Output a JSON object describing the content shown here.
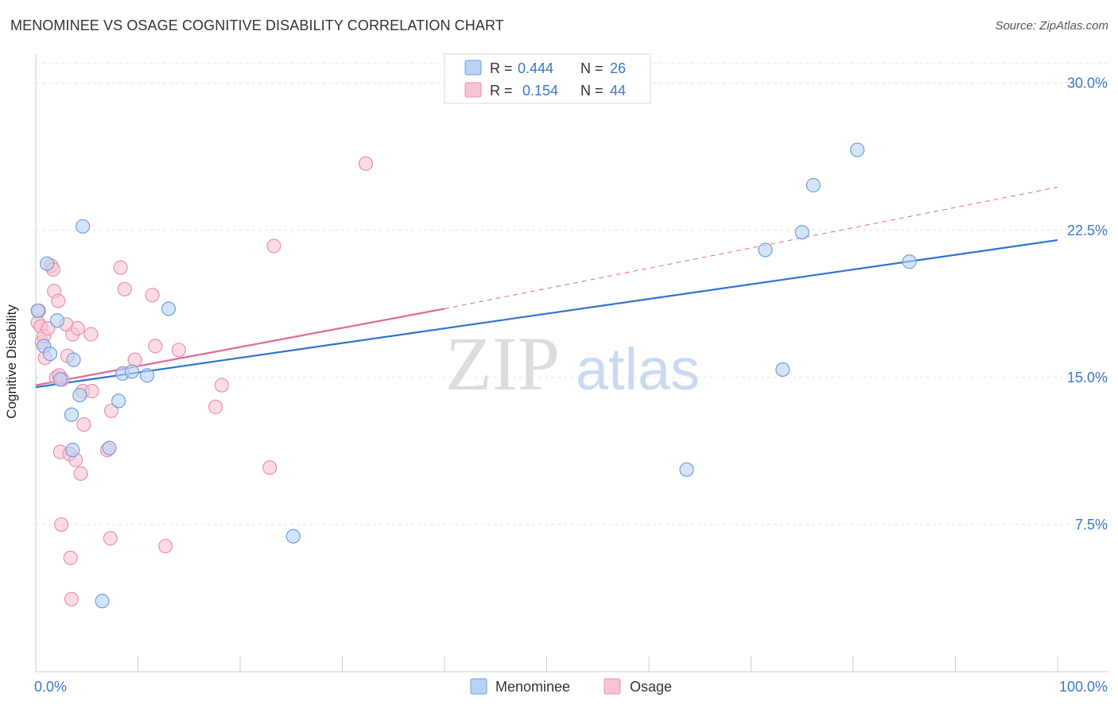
{
  "header": {
    "title": "MENOMINEE VS OSAGE COGNITIVE DISABILITY CORRELATION CHART",
    "source": "Source: ZipAtlas.com"
  },
  "watermark": {
    "zip": "ZIP",
    "atlas": "atlas"
  },
  "colors": {
    "menominee_fill": "#b9d3f4",
    "menominee_stroke": "#6e9fdc",
    "menominee_line": "#2f72d0",
    "osage_fill": "#f8c3d3",
    "osage_stroke": "#e991ad",
    "osage_line": "#e06a93",
    "accent_text": "#3a78c9"
  },
  "stats": [
    {
      "r_label": "R =",
      "r_value": "0.444",
      "n_label": "N =",
      "n_value": "26"
    },
    {
      "r_label": "R =",
      "r_value": "0.154",
      "n_label": "N =",
      "n_value": "44"
    }
  ],
  "chart_data": {
    "type": "scatter",
    "title": "MENOMINEE VS OSAGE COGNITIVE DISABILITY CORRELATION CHART",
    "xlabel": "",
    "ylabel": "Cognitive Disability",
    "xlim": [
      0,
      100
    ],
    "ylim": [
      0,
      31
    ],
    "x_tick_labels": [
      "0.0%",
      "100.0%"
    ],
    "y_ticks": [
      7.5,
      15.0,
      22.5,
      30.0
    ],
    "y_tick_labels": [
      "7.5%",
      "15.0%",
      "22.5%",
      "30.0%"
    ],
    "grid": true,
    "legend_position": "bottom-center",
    "series": [
      {
        "name": "Menominee",
        "points": [
          [
            0.2,
            18.4
          ],
          [
            0.8,
            16.6
          ],
          [
            1.1,
            20.8
          ],
          [
            1.4,
            16.2
          ],
          [
            2.1,
            17.9
          ],
          [
            2.4,
            14.9
          ],
          [
            3.5,
            13.1
          ],
          [
            3.6,
            11.3
          ],
          [
            3.7,
            15.9
          ],
          [
            4.3,
            14.1
          ],
          [
            4.6,
            22.7
          ],
          [
            6.5,
            3.6
          ],
          [
            7.2,
            11.4
          ],
          [
            8.1,
            13.8
          ],
          [
            8.5,
            15.2
          ],
          [
            9.4,
            15.3
          ],
          [
            10.9,
            15.1
          ],
          [
            13.0,
            18.5
          ],
          [
            25.2,
            6.9
          ],
          [
            63.7,
            10.3
          ],
          [
            71.4,
            21.5
          ],
          [
            73.1,
            15.4
          ],
          [
            75.0,
            22.4
          ],
          [
            76.1,
            24.8
          ],
          [
            80.4,
            26.6
          ],
          [
            85.5,
            20.9
          ]
        ],
        "trend": {
          "x": [
            0,
            100
          ],
          "y": [
            14.5,
            22.0
          ]
        }
      },
      {
        "name": "Osage",
        "points": [
          [
            0.2,
            17.8
          ],
          [
            0.3,
            18.4
          ],
          [
            0.5,
            17.6
          ],
          [
            0.6,
            16.8
          ],
          [
            0.8,
            17.1
          ],
          [
            0.9,
            16.0
          ],
          [
            1.2,
            17.5
          ],
          [
            1.5,
            20.7
          ],
          [
            1.7,
            20.5
          ],
          [
            1.8,
            19.4
          ],
          [
            2.0,
            15.0
          ],
          [
            2.2,
            18.9
          ],
          [
            2.3,
            15.1
          ],
          [
            2.4,
            11.2
          ],
          [
            2.5,
            7.5
          ],
          [
            2.6,
            14.9
          ],
          [
            3.0,
            17.7
          ],
          [
            3.1,
            16.1
          ],
          [
            3.3,
            11.1
          ],
          [
            3.4,
            5.8
          ],
          [
            3.5,
            3.7
          ],
          [
            3.6,
            17.2
          ],
          [
            3.9,
            10.8
          ],
          [
            4.1,
            17.5
          ],
          [
            4.4,
            10.1
          ],
          [
            4.6,
            14.3
          ],
          [
            4.7,
            12.6
          ],
          [
            5.4,
            17.2
          ],
          [
            5.5,
            14.3
          ],
          [
            7.0,
            11.3
          ],
          [
            7.3,
            6.8
          ],
          [
            7.4,
            13.3
          ],
          [
            8.3,
            20.6
          ],
          [
            8.7,
            19.5
          ],
          [
            9.7,
            15.9
          ],
          [
            11.4,
            19.2
          ],
          [
            11.7,
            16.6
          ],
          [
            12.7,
            6.4
          ],
          [
            14.0,
            16.4
          ],
          [
            17.6,
            13.5
          ],
          [
            18.2,
            14.6
          ],
          [
            22.9,
            10.4
          ],
          [
            23.3,
            21.7
          ],
          [
            32.3,
            25.9
          ]
        ],
        "trend": {
          "x": [
            0,
            40
          ],
          "y": [
            14.6,
            18.5
          ]
        },
        "trend_extension": {
          "x": [
            40,
            100
          ],
          "y": [
            18.5,
            24.7
          ]
        }
      }
    ]
  },
  "legend": {
    "items": [
      "Menominee",
      "Osage"
    ]
  }
}
